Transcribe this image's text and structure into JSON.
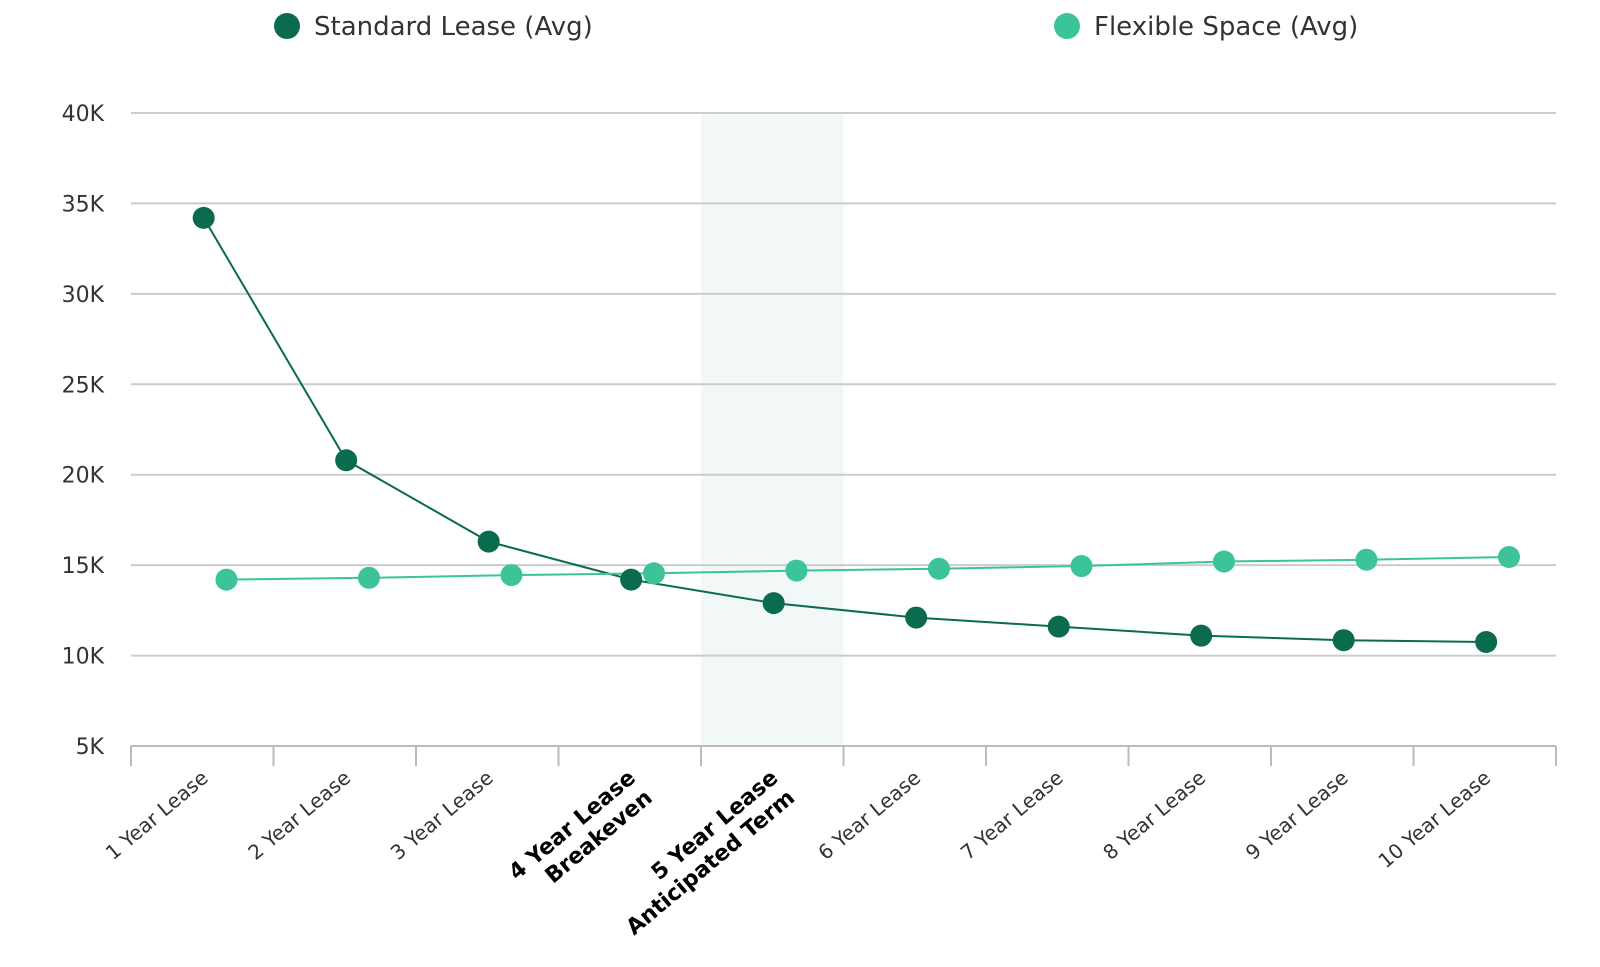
{
  "chart_data": {
    "type": "line",
    "title": "",
    "xlabel": "",
    "ylabel": "",
    "categories": [
      [
        "1 Year Lease"
      ],
      [
        "2 Year Lease"
      ],
      [
        "3 Year Lease"
      ],
      [
        "4 Year Lease",
        "Breakeven"
      ],
      [
        "5 Year Lease",
        "Anticipated Term"
      ],
      [
        "6 Year Lease"
      ],
      [
        "7 Year Lease"
      ],
      [
        "8 Year Lease"
      ],
      [
        "9 Year Lease"
      ],
      [
        "10 Year Lease"
      ]
    ],
    "emphasized_categories": [
      3,
      4
    ],
    "highlighted_category": 4,
    "ylim": [
      5000,
      40000
    ],
    "y_ticks": [
      {
        "value": 5000,
        "label": "5K"
      },
      {
        "value": 10000,
        "label": "10K"
      },
      {
        "value": 15000,
        "label": "15K"
      },
      {
        "value": 20000,
        "label": "20K"
      },
      {
        "value": 25000,
        "label": "25K"
      },
      {
        "value": 30000,
        "label": "30K"
      },
      {
        "value": 35000,
        "label": "35K"
      },
      {
        "value": 40000,
        "label": "40K"
      }
    ],
    "grid": true,
    "legend_position": "top",
    "series": [
      {
        "name": "Standard Lease (Avg)",
        "color": "#0a6b4f",
        "values": [
          34200,
          20800,
          16300,
          14200,
          12900,
          12100,
          11600,
          11100,
          10850,
          10750
        ]
      },
      {
        "name": "Flexible Space (Avg)",
        "color": "#3cc39a",
        "values": [
          14200,
          14300,
          14450,
          14550,
          14700,
          14800,
          14950,
          15200,
          15300,
          15450
        ]
      }
    ],
    "colors": {
      "grid": "#cccccc",
      "axis": "#bbbbbb",
      "highlight_band": "#f2f8f7"
    }
  }
}
